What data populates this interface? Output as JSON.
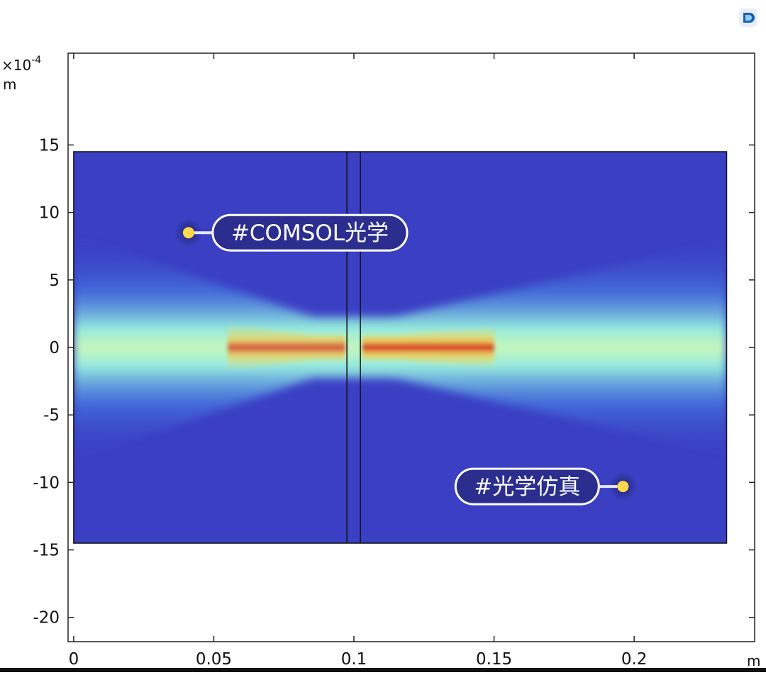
{
  "app": {
    "logo_icon": "comsol-logo-icon"
  },
  "chart_data": {
    "type": "heatmap",
    "x_unit": "m",
    "y_unit": "m",
    "y_multiplier": "×10",
    "y_multiplier_exp": "-4",
    "xlim": [
      -0.002,
      0.243
    ],
    "ylim": [
      -21.8,
      21.8
    ],
    "x_ticks": [
      0,
      0.05,
      0.1,
      0.15,
      0.2
    ],
    "x_tick_labels": [
      "0",
      "0.05",
      "0.1",
      "0.15",
      "0.2"
    ],
    "y_ticks": [
      15,
      10,
      5,
      0,
      -5,
      -10,
      -15,
      -20
    ],
    "y_tick_labels": [
      "15",
      "10",
      "5",
      "0",
      "-5",
      "-10",
      "-15",
      "-20"
    ],
    "domain": {
      "x": [
        0,
        0.233
      ],
      "y": [
        -14.5,
        14.5
      ]
    },
    "lens_lines_x": [
      0.0975,
      0.1023
    ],
    "field": {
      "description_colormap": "rainbow",
      "beam_center_y": 0,
      "focus_left_x": 0.085,
      "focus_right_x": 0.115,
      "peak_left": 0.85,
      "peak_right": 1.0
    },
    "annotations": [
      {
        "text": "#COMSOL光学",
        "point": [
          0.041,
          8.5
        ],
        "side": "right"
      },
      {
        "text": "#光学仿真",
        "point": [
          0.196,
          -10.3
        ],
        "side": "left"
      }
    ],
    "grid": false
  },
  "colors": {
    "background_field": "#3a3fc4",
    "beam_cyan": "#9cf6e0",
    "beam_yellow": "#f2e35a",
    "beam_red": "#d42a1e",
    "tag_fill": "#2b2e8f",
    "tag_border": "#ffffff",
    "marker": "#ffd84a"
  }
}
